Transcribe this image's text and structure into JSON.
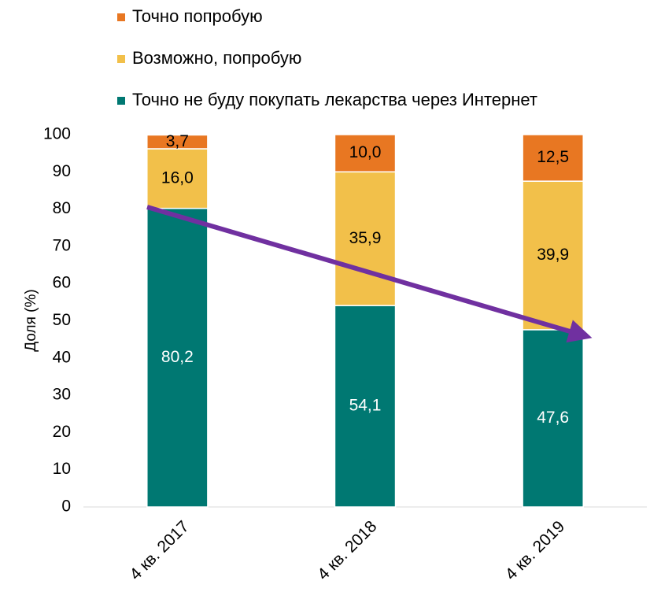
{
  "chart_data": {
    "type": "stacked_bar",
    "categories": [
      "4 кв. 2017",
      "4 кв. 2018",
      "4 кв. 2019"
    ],
    "y_axis_label": "Доля (%)",
    "ylim": [
      0,
      100
    ],
    "yticks": [
      0,
      10,
      20,
      30,
      40,
      50,
      60,
      70,
      80,
      90,
      100
    ],
    "series": [
      {
        "name": "Точно не буду покупать лекарства через Интернет",
        "color": "#007872",
        "label_color": "#ffffff",
        "values": [
          80.2,
          54.1,
          47.6
        ],
        "value_labels": [
          "80,2",
          "54,1",
          "47,6"
        ]
      },
      {
        "name": "Возможно, попробую",
        "color": "#f2c04a",
        "label_color": "#000000",
        "values": [
          16.0,
          35.9,
          39.9
        ],
        "value_labels": [
          "16,0",
          "35,9",
          "39,9"
        ]
      },
      {
        "name": "Точно попробую",
        "color": "#e87722",
        "label_color": "#000000",
        "values": [
          3.7,
          10.0,
          12.5
        ],
        "value_labels": [
          "3,7",
          "10,0",
          "12,5"
        ]
      }
    ]
  }
}
